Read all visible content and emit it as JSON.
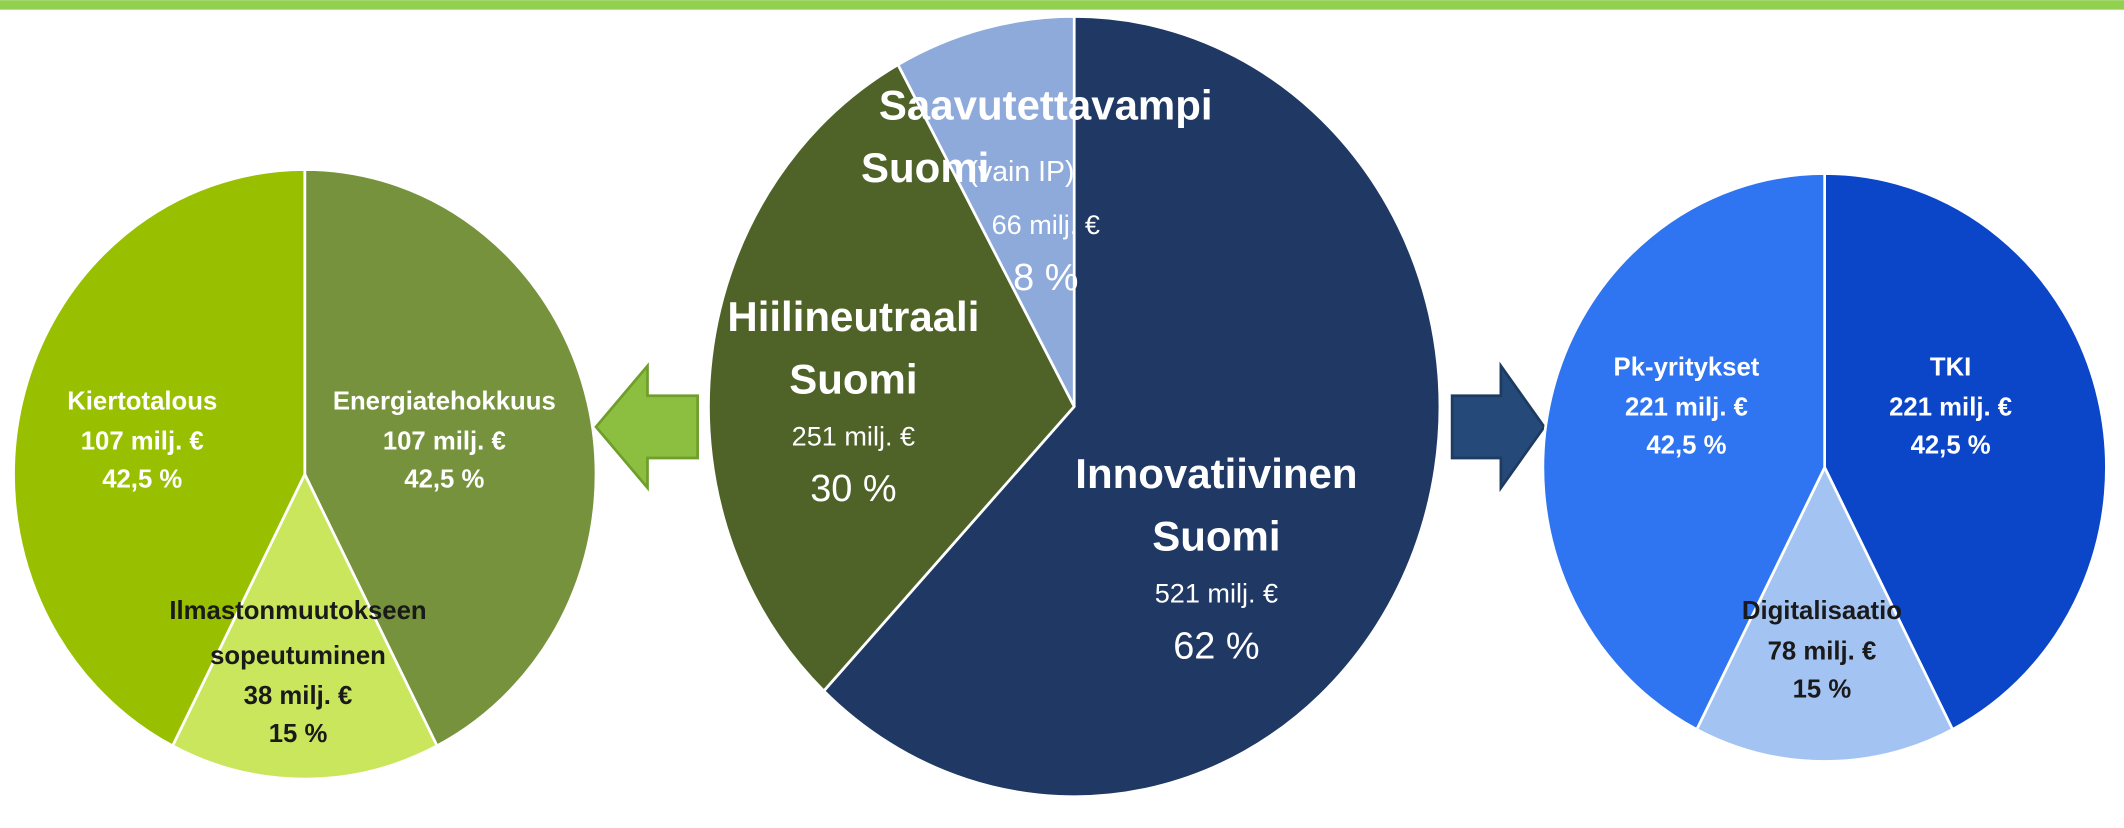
{
  "chart_data": [
    {
      "type": "pie",
      "categories": [
        [
          "Innovatiivinen",
          "Suomi"
        ],
        [
          "Hiilineutraali",
          "Suomi"
        ],
        [
          "Saavutettavampi",
          "Suomi"
        ]
      ],
      "note": "(vain IP)",
      "values": [
        62,
        30,
        8
      ],
      "value_labels": [
        "62 %",
        "30 %",
        "8 %"
      ],
      "amounts": [
        521,
        251,
        66
      ],
      "amount_labels": [
        "521 milj. €",
        "251 milj. €",
        "66 milj. €"
      ],
      "colors": [
        "#1f3864",
        "#4f6228",
        "#8eaadb"
      ]
    },
    {
      "type": "pie",
      "categories": [
        [
          "Energiatehokkuus"
        ],
        [
          "Ilmastonmuutokseen",
          "sopeutuminen"
        ],
        [
          "Kiertotalous"
        ]
      ],
      "values": [
        42.5,
        15,
        42.5
      ],
      "value_labels": [
        "42,5 %",
        "15 %",
        "42,5 %"
      ],
      "amounts": [
        107,
        38,
        107
      ],
      "amount_labels": [
        "107 milj. €",
        "38 milj. €",
        "107 milj. €"
      ],
      "colors": [
        "#76923c",
        "#c9e65c",
        "#99c000"
      ]
    },
    {
      "type": "pie",
      "categories": [
        [
          "TKI"
        ],
        [
          "Digitalisaatio"
        ],
        [
          "Pk-yritykset"
        ]
      ],
      "values": [
        42.5,
        15,
        42.5
      ],
      "value_labels": [
        "42,5 %",
        "15 %",
        "42,5 %"
      ],
      "amounts": [
        221,
        78,
        221
      ],
      "amount_labels": [
        "221 milj. €",
        "78 milj. €",
        "221 milj. €"
      ],
      "colors": [
        "#0b45c8",
        "#a3c4f3",
        "#2f74f0"
      ]
    }
  ]
}
